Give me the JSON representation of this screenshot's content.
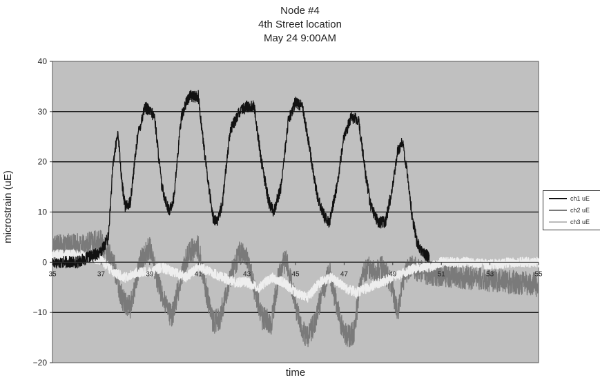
{
  "chart_data": {
    "type": "line",
    "title": [
      "Node #4",
      "4th Street location",
      "May 24 9:00AM"
    ],
    "xlabel": "time",
    "ylabel": "microstrain (uE)",
    "xlim": [
      35,
      55
    ],
    "ylim": [
      -20,
      40
    ],
    "yticks": [
      -20,
      -10,
      0,
      10,
      20,
      30,
      40
    ],
    "xtick_labels": [
      "35",
      "37",
      "39",
      "41",
      "43",
      "45",
      "47",
      "49",
      "51",
      "53",
      "55"
    ],
    "grid": "horizontal",
    "legend_position": "right",
    "background": "#c0c0c0",
    "series": [
      {
        "name": "ch1 uE",
        "color": "#111111",
        "x": [
          35,
          36,
          37,
          37.3,
          37.5,
          37.7,
          37.85,
          38.0,
          38.2,
          38.5,
          38.8,
          39.2,
          39.5,
          39.8,
          40.0,
          40.3,
          40.6,
          41.0,
          41.3,
          41.6,
          41.8,
          42.0,
          42.3,
          42.7,
          43.0,
          43.3,
          43.6,
          43.9,
          44.1,
          44.4,
          44.7,
          45.0,
          45.3,
          45.6,
          45.9,
          46.2,
          46.4,
          46.7,
          47.0,
          47.3,
          47.6,
          47.9,
          48.1,
          48.4,
          48.7,
          49.0,
          49.2,
          49.4,
          49.6,
          49.8,
          50.0,
          50.2,
          50.5
        ],
        "y": [
          0,
          0,
          2,
          5,
          20,
          26,
          16,
          11,
          12,
          25,
          31,
          29,
          15,
          10,
          13,
          29,
          33,
          33,
          20,
          9,
          8,
          12,
          26,
          30,
          31,
          31,
          20,
          12,
          10,
          15,
          28,
          32,
          31,
          22,
          13,
          9,
          8,
          15,
          25,
          29,
          28,
          17,
          11,
          8,
          8,
          15,
          22,
          24,
          18,
          9,
          4,
          2,
          1
        ]
      },
      {
        "name": "ch2 uE",
        "color": "#7a7a7a",
        "x": [
          35,
          36,
          37,
          37.5,
          37.85,
          38.2,
          38.6,
          39.0,
          39.3,
          39.6,
          39.9,
          40.3,
          40.6,
          41.0,
          41.3,
          41.6,
          41.9,
          42.3,
          42.7,
          43.0,
          43.3,
          43.6,
          44.0,
          44.3,
          44.6,
          44.9,
          45.2,
          45.5,
          45.8,
          46.1,
          46.4,
          46.8,
          47.1,
          47.4,
          47.7,
          48.0,
          48.3,
          48.6,
          48.9,
          49.2,
          49.5,
          49.8,
          50.2,
          51,
          52,
          53,
          54,
          55
        ],
        "y": [
          3,
          3.5,
          4,
          0,
          -7,
          -9,
          0,
          3,
          -3,
          -8,
          -11,
          -3,
          2,
          3,
          -5,
          -12,
          -11,
          -3,
          2,
          1,
          -5,
          -11,
          -12,
          -3,
          1,
          -6,
          -13,
          -15,
          -12,
          -6,
          -2,
          -11,
          -15,
          -14,
          -3,
          -1,
          -2,
          -1,
          -4,
          -10,
          -2,
          -1,
          -2,
          -2.5,
          -3,
          -3.5,
          -4,
          -4.5
        ]
      },
      {
        "name": "ch3 uE",
        "color": "#eeeeee",
        "x": [
          35,
          35.5,
          36,
          36.5,
          37,
          37.5,
          38,
          38.5,
          39,
          39.5,
          40,
          40.5,
          41,
          41.5,
          42,
          42.5,
          43,
          43.5,
          44,
          44.5,
          45,
          45.5,
          46,
          46.5,
          47,
          47.5,
          48,
          48.5,
          49,
          49.5,
          50,
          50.5,
          51,
          52,
          53,
          54,
          55
        ],
        "y": [
          1.5,
          1.5,
          1.5,
          1,
          0.5,
          -2,
          -3,
          -2,
          -2,
          -1,
          -2,
          -3,
          -1,
          -2,
          -3,
          -4,
          -4,
          -5,
          -3,
          -4,
          -6,
          -7,
          -4,
          -3,
          -5,
          -6,
          -5,
          -4,
          -3,
          -2,
          -1,
          -1,
          0,
          0,
          -0.5,
          0,
          0
        ]
      }
    ]
  }
}
